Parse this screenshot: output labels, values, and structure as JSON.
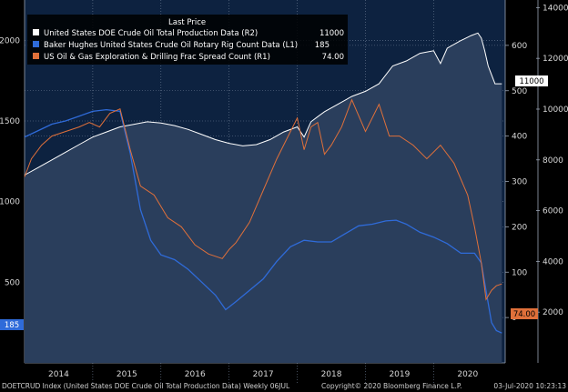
{
  "chart_data": {
    "type": "line",
    "title": "",
    "xlabel": "",
    "ylabel": "",
    "x_axis": {
      "ticks": [
        "2014",
        "2015",
        "2016",
        "2017",
        "2018",
        "2019",
        "2020"
      ],
      "range": [
        2013.5,
        2020.55
      ]
    },
    "left_axis": {
      "ticks": [
        500,
        1000,
        1500,
        2000
      ],
      "range": [
        0,
        2250
      ]
    },
    "right_axis_1": {
      "ticks": [
        0,
        100,
        200,
        300,
        400,
        500,
        600
      ],
      "range": [
        -100,
        700
      ]
    },
    "right_axis_2": {
      "ticks": [
        2000,
        4000,
        6000,
        8000,
        10000,
        12000,
        14000
      ],
      "range": [
        0,
        14300
      ]
    },
    "legend": {
      "title": "Last Price",
      "placement": "top",
      "entries": [
        {
          "label": "United States DOE Crude Oil Total Production Data  (R2)",
          "value": "11000",
          "color": "#ffffff"
        },
        {
          "label": "Baker Hughes United States Crude Oil Rotary Rig Count Data  (L1)",
          "value": "185",
          "color": "#2f6bd9"
        },
        {
          "label": "US Oil & Gas Exploration & Drilling Frac Spread Count  (R1)",
          "value": "74.00",
          "color": "#e0703a"
        }
      ]
    },
    "series": [
      {
        "name": "United States DOE Crude Oil Total Production Data",
        "axis": "right_axis_2",
        "color": "#ffffff",
        "fill": true,
        "last": "11000",
        "x": [
          2013.5,
          2013.7,
          2013.9,
          2014.1,
          2014.3,
          2014.5,
          2014.7,
          2014.9,
          2015.1,
          2015.3,
          2015.5,
          2015.7,
          2015.9,
          2016.1,
          2016.3,
          2016.5,
          2016.7,
          2016.9,
          2017.1,
          2017.3,
          2017.5,
          2017.6,
          2017.7,
          2017.8,
          2017.9,
          2018.1,
          2018.3,
          2018.5,
          2018.7,
          2018.9,
          2019.1,
          2019.3,
          2019.5,
          2019.6,
          2019.7,
          2019.9,
          2020.05,
          2020.15,
          2020.2,
          2020.25,
          2020.3,
          2020.4,
          2020.5
        ],
        "values": [
          7400,
          7700,
          8000,
          8300,
          8600,
          8900,
          9100,
          9300,
          9400,
          9500,
          9450,
          9350,
          9200,
          9000,
          8800,
          8650,
          8550,
          8600,
          8800,
          9100,
          9300,
          8900,
          9500,
          9700,
          9900,
          10200,
          10500,
          10700,
          11000,
          11700,
          11900,
          12200,
          12300,
          11800,
          12400,
          12700,
          12900,
          13000,
          12800,
          12300,
          11700,
          11000,
          11000
        ]
      },
      {
        "name": "Baker Hughes United States Crude Oil Rotary Rig Count Data",
        "axis": "left_axis",
        "color": "#2f6bd9",
        "last": "185",
        "x": [
          2013.5,
          2013.7,
          2013.9,
          2014.1,
          2014.3,
          2014.5,
          2014.7,
          2014.9,
          2015.05,
          2015.2,
          2015.35,
          2015.5,
          2015.7,
          2015.9,
          2016.1,
          2016.3,
          2016.45,
          2016.6,
          2016.8,
          2017.0,
          2017.2,
          2017.4,
          2017.6,
          2017.8,
          2018.0,
          2018.2,
          2018.4,
          2018.6,
          2018.8,
          2018.95,
          2019.1,
          2019.3,
          2019.5,
          2019.7,
          2019.9,
          2020.1,
          2020.2,
          2020.28,
          2020.35,
          2020.42,
          2020.5
        ],
        "values": [
          1400,
          1440,
          1480,
          1500,
          1530,
          1560,
          1570,
          1560,
          1300,
          950,
          760,
          670,
          640,
          580,
          500,
          420,
          330,
          380,
          450,
          520,
          630,
          720,
          760,
          750,
          750,
          800,
          850,
          860,
          880,
          885,
          860,
          810,
          780,
          740,
          680,
          680,
          620,
          420,
          250,
          200,
          185
        ]
      },
      {
        "name": "US Oil & Gas Exploration & Drilling Frac Spread Count",
        "axis": "right_axis_1",
        "color": "#e0703a",
        "last": "74.00",
        "x": [
          2013.5,
          2013.6,
          2013.75,
          2013.9,
          2014.1,
          2014.3,
          2014.45,
          2014.6,
          2014.75,
          2014.9,
          2015.05,
          2015.2,
          2015.4,
          2015.6,
          2015.8,
          2016.0,
          2016.2,
          2016.4,
          2016.5,
          2016.6,
          2016.8,
          2017.0,
          2017.2,
          2017.4,
          2017.5,
          2017.6,
          2017.7,
          2017.8,
          2017.9,
          2018.0,
          2018.15,
          2018.3,
          2018.5,
          2018.7,
          2018.85,
          2019.0,
          2019.2,
          2019.4,
          2019.6,
          2019.8,
          2020.0,
          2020.1,
          2020.2,
          2020.27,
          2020.35,
          2020.42,
          2020.5
        ],
        "values": [
          310,
          350,
          380,
          400,
          410,
          420,
          430,
          420,
          450,
          460,
          370,
          290,
          270,
          220,
          200,
          160,
          140,
          130,
          150,
          165,
          210,
          280,
          350,
          410,
          440,
          370,
          420,
          430,
          360,
          380,
          420,
          480,
          410,
          470,
          400,
          400,
          380,
          350,
          380,
          340,
          270,
          200,
          120,
          40,
          60,
          70,
          74
        ]
      }
    ],
    "footer": {
      "left": "DOETCRUD Index (United States DOE Crude Oil Total Production Data)  Weekly 06JUL",
      "center": "Copyright© 2020 Bloomberg Finance L.P.",
      "right": "03-Jul-2020 10:23:13"
    },
    "colors": {
      "plot_bg": "#0d2240",
      "production_fill": "#2a3e5c",
      "grid": "#6f7f96"
    }
  }
}
